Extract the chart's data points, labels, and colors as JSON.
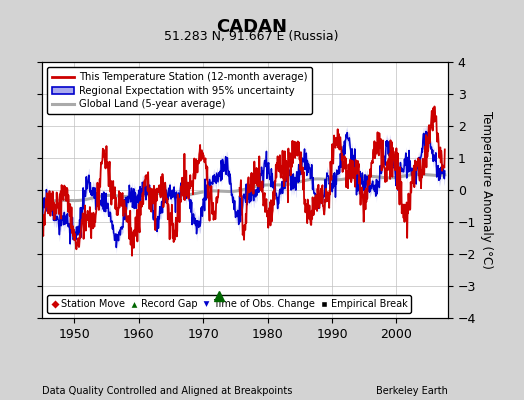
{
  "title": "CADAN",
  "subtitle": "51.283 N, 91.667 E (Russia)",
  "ylabel": "Temperature Anomaly (°C)",
  "xlabel_left": "Data Quality Controlled and Aligned at Breakpoints",
  "xlabel_right": "Berkeley Earth",
  "ylim": [
    -4,
    4
  ],
  "xlim": [
    1945,
    2008
  ],
  "xticks": [
    1950,
    1960,
    1970,
    1980,
    1990,
    2000
  ],
  "yticks": [
    -4,
    -3,
    -2,
    -1,
    0,
    1,
    2,
    3,
    4
  ],
  "bg_color": "#d3d3d3",
  "plot_bg_color": "#ffffff",
  "grid_color": "#c0c0c0",
  "red_color": "#cc0000",
  "blue_color": "#0000cc",
  "blue_fill_color": "#aaaaee",
  "gray_color": "#aaaaaa",
  "record_gap_x": 1972.5,
  "record_gap_y": -3.3
}
